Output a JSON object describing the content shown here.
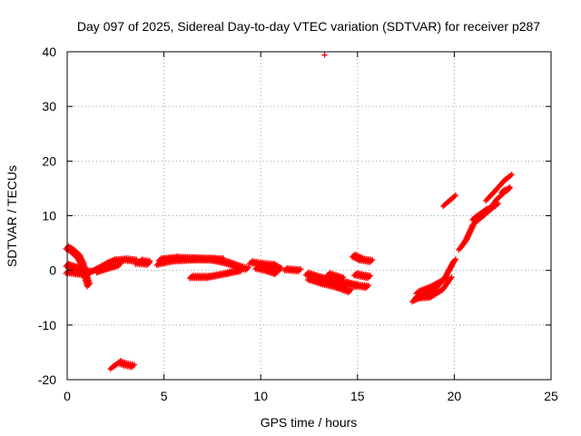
{
  "chart_data": {
    "type": "scatter",
    "title": "Day 097 of 2025, Sidereal Day-to-day VTEC variation (SDTVAR) for receiver p287",
    "xlabel": "GPS time / hours",
    "ylabel": "SDTVAR / TECUs",
    "xlim": [
      0,
      25
    ],
    "ylim": [
      -20,
      40
    ],
    "xticks": [
      0,
      5,
      10,
      15,
      20,
      25
    ],
    "yticks": [
      -20,
      -10,
      0,
      10,
      20,
      30,
      40
    ],
    "grid": true,
    "series": [
      {
        "name": "SDTVAR",
        "color": "#ff0000",
        "segments": [
          [
            [
              0.0,
              4.2
            ],
            [
              0.3,
              3.5
            ],
            [
              0.6,
              2.5
            ],
            [
              0.8,
              1.0
            ],
            [
              1.0,
              -1.5
            ],
            [
              1.1,
              -2.7
            ]
          ],
          [
            [
              0.0,
              1.0
            ],
            [
              0.4,
              0.5
            ],
            [
              0.8,
              0.0
            ],
            [
              1.2,
              -0.3
            ]
          ],
          [
            [
              0.0,
              -0.3
            ],
            [
              0.5,
              -0.5
            ],
            [
              1.0,
              -0.8
            ]
          ],
          [
            [
              1.1,
              -0.5
            ],
            [
              1.5,
              0.2
            ],
            [
              2.0,
              1.2
            ],
            [
              2.4,
              1.8
            ],
            [
              3.0,
              2.0
            ],
            [
              3.5,
              1.8
            ]
          ],
          [
            [
              1.6,
              -0.2
            ],
            [
              2.2,
              0.5
            ],
            [
              2.7,
              1.0
            ]
          ],
          [
            [
              3.6,
              1.4
            ],
            [
              4.2,
              1.2
            ]
          ],
          [
            [
              3.8,
              1.8
            ],
            [
              4.2,
              1.5
            ]
          ],
          [
            [
              2.3,
              -17.8
            ],
            [
              2.7,
              -16.8
            ],
            [
              3.0,
              -17.2
            ],
            [
              3.4,
              -17.5
            ]
          ],
          [
            [
              4.7,
              1.2
            ],
            [
              5.5,
              1.8
            ],
            [
              6.5,
              2.0
            ],
            [
              7.5,
              2.0
            ],
            [
              8.3,
              1.4
            ],
            [
              9.0,
              0.5
            ],
            [
              9.3,
              0.3
            ]
          ],
          [
            [
              4.8,
              2.0
            ],
            [
              5.6,
              2.3
            ],
            [
              6.5,
              2.2
            ],
            [
              7.5,
              2.1
            ],
            [
              8.0,
              2.0
            ]
          ],
          [
            [
              6.4,
              -1.2
            ],
            [
              7.3,
              -1.2
            ],
            [
              8.3,
              -0.5
            ],
            [
              9.0,
              0.0
            ]
          ],
          [
            [
              9.5,
              1.5
            ],
            [
              10.0,
              1.2
            ],
            [
              10.6,
              1.0
            ],
            [
              11.0,
              0.2
            ]
          ],
          [
            [
              9.8,
              0.5
            ],
            [
              10.4,
              0.0
            ],
            [
              10.8,
              -0.5
            ]
          ],
          [
            [
              11.3,
              0.2
            ],
            [
              12.0,
              0.0
            ]
          ],
          [
            [
              12.4,
              -0.6
            ],
            [
              13.0,
              -1.3
            ],
            [
              13.6,
              -1.8
            ],
            [
              14.4,
              -2.3
            ],
            [
              15.0,
              -2.8
            ],
            [
              15.5,
              -3.0
            ]
          ],
          [
            [
              12.5,
              -1.5
            ],
            [
              13.2,
              -2.3
            ],
            [
              14.0,
              -3.0
            ],
            [
              14.6,
              -3.8
            ]
          ],
          [
            [
              13.5,
              -0.7
            ],
            [
              14.2,
              -1.5
            ]
          ],
          [
            [
              14.9,
              -0.7
            ],
            [
              15.6,
              -1.2
            ]
          ],
          [
            [
              14.8,
              2.7
            ],
            [
              15.2,
              2.0
            ],
            [
              15.7,
              1.7
            ]
          ],
          [
            [
              13.3,
              39.4
            ]
          ],
          [
            [
              17.9,
              -5.5
            ],
            [
              18.5,
              -4.5
            ],
            [
              19.0,
              -3.5
            ],
            [
              19.5,
              -1.5
            ],
            [
              20.0,
              1.8
            ]
          ],
          [
            [
              18.0,
              -5.0
            ],
            [
              18.8,
              -4.8
            ],
            [
              19.4,
              -3.5
            ],
            [
              19.8,
              -1.5
            ]
          ],
          [
            [
              18.1,
              -4.0
            ],
            [
              18.8,
              -3.0
            ],
            [
              19.3,
              -2.0
            ]
          ],
          [
            [
              19.5,
              12.0
            ],
            [
              20.0,
              13.5
            ]
          ],
          [
            [
              20.3,
              4.0
            ],
            [
              20.6,
              5.5
            ],
            [
              21.0,
              8.5
            ],
            [
              21.5,
              10.0
            ],
            [
              22.0,
              11.5
            ]
          ],
          [
            [
              21.0,
              9.5
            ],
            [
              21.6,
              11.0
            ],
            [
              22.2,
              12.0
            ]
          ],
          [
            [
              21.7,
              13.0
            ],
            [
              22.1,
              14.5
            ],
            [
              22.6,
              16.5
            ],
            [
              22.9,
              17.3
            ]
          ],
          [
            [
              21.8,
              11.0
            ],
            [
              22.2,
              13.0
            ],
            [
              22.8,
              15.0
            ]
          ],
          [
            [
              22.5,
              14.5
            ],
            [
              22.8,
              14.8
            ]
          ]
        ]
      }
    ]
  }
}
